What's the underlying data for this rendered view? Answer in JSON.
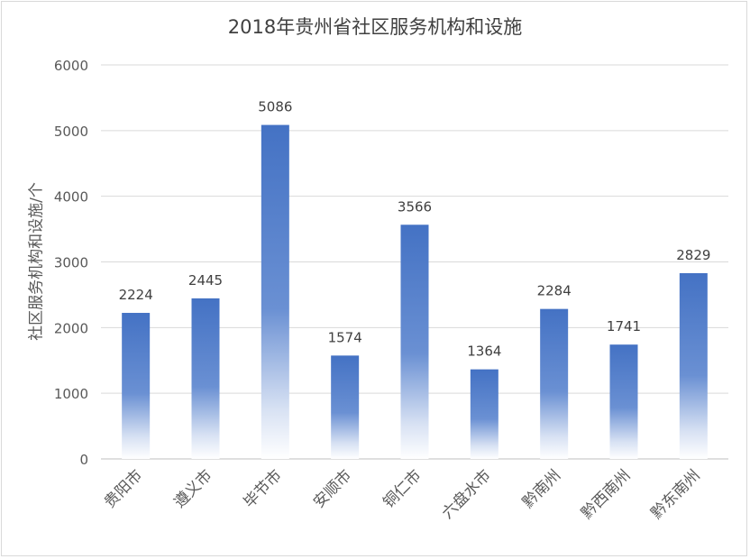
{
  "chart_data": {
    "type": "bar",
    "title": "2018年贵州省社区服务机构和设施",
    "xlabel": "",
    "ylabel": "社区服务机构和设施/个",
    "ylim": [
      0,
      6000
    ],
    "yticks": [
      0,
      1000,
      2000,
      3000,
      4000,
      5000,
      6000
    ],
    "grid": true,
    "categories": [
      "贵阳市",
      "遵义市",
      "毕节市",
      "安顺市",
      "铜仁市",
      "六盘水市",
      "黔南州",
      "黔西南州",
      "黔东南州"
    ],
    "values": [
      2224,
      2445,
      5086,
      1574,
      3566,
      1364,
      2284,
      1741,
      2829
    ],
    "data_labels": true,
    "bar_color": "#4472c4"
  }
}
